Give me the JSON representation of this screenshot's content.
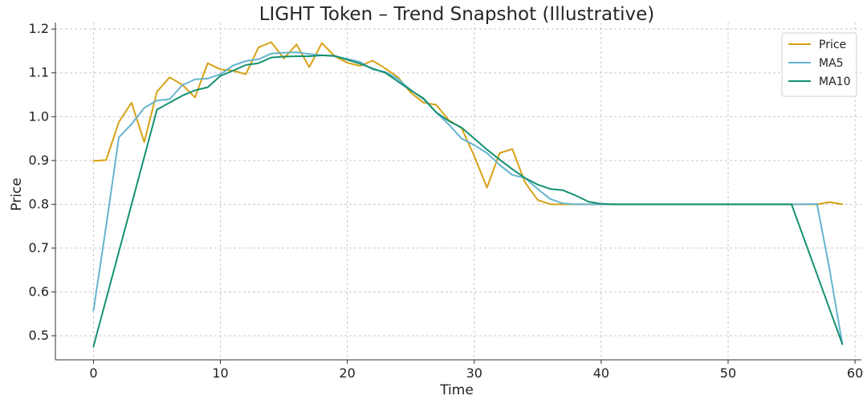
{
  "chart_data": {
    "type": "line",
    "title": "LIGHT Token – Trend Snapshot (Illustrative)",
    "xlabel": "Time",
    "ylabel": "Price",
    "xlim": [
      -3,
      60.5
    ],
    "ylim": [
      0.445,
      1.215
    ],
    "xticks": [
      0,
      10,
      20,
      30,
      40,
      50,
      60
    ],
    "yticks": [
      0.5,
      0.6,
      0.7,
      0.8,
      0.9,
      1.0,
      1.1,
      1.2
    ],
    "ytick_labels": [
      "0.5",
      "0.6",
      "0.7",
      "0.8",
      "0.9",
      "1.0",
      "1.1",
      "1.2"
    ],
    "grid": true,
    "legend_position": "top-right",
    "series": [
      {
        "name": "Price",
        "color": "#d6a215",
        "x": [
          0,
          1,
          2,
          3,
          4,
          5,
          6,
          7,
          8,
          9,
          10,
          11,
          12,
          13,
          14,
          15,
          16,
          17,
          18,
          19,
          20,
          21,
          22,
          23,
          24,
          25,
          26,
          27,
          28,
          29,
          30,
          31,
          32,
          33,
          34,
          35,
          36,
          37,
          38,
          39,
          40,
          41,
          42,
          43,
          44,
          45,
          46,
          47,
          48,
          49,
          50,
          51,
          52,
          53,
          54,
          55,
          56,
          57,
          58,
          59
        ],
        "values": [
          0.899,
          0.901,
          0.988,
          1.032,
          0.942,
          1.057,
          1.09,
          1.073,
          1.044,
          1.122,
          1.108,
          1.105,
          1.097,
          1.158,
          1.17,
          1.133,
          1.165,
          1.113,
          1.168,
          1.138,
          1.123,
          1.116,
          1.128,
          1.11,
          1.09,
          1.055,
          1.032,
          1.027,
          0.992,
          0.974,
          0.91,
          0.838,
          0.917,
          0.926,
          0.85,
          0.81,
          0.8,
          0.8,
          0.8,
          0.8,
          0.8,
          0.8,
          0.8,
          0.8,
          0.8,
          0.8,
          0.8,
          0.8,
          0.8,
          0.8,
          0.8,
          0.8,
          0.8,
          0.8,
          0.8,
          0.8,
          0.8,
          0.8,
          0.805,
          0.8
        ]
      },
      {
        "name": "MA5",
        "color": "#65b4cf",
        "x": [
          0,
          1,
          2,
          3,
          4,
          5,
          6,
          7,
          8,
          9,
          10,
          11,
          12,
          13,
          14,
          15,
          16,
          17,
          18,
          19,
          20,
          21,
          22,
          23,
          24,
          25,
          26,
          27,
          28,
          29,
          30,
          31,
          32,
          33,
          34,
          35,
          36,
          37,
          38,
          39,
          40,
          41,
          42,
          43,
          44,
          45,
          46,
          47,
          48,
          49,
          50,
          51,
          52,
          53,
          54,
          55,
          56,
          57,
          58,
          59
        ],
        "values": [
          0.557,
          0.75,
          0.953,
          0.983,
          1.02,
          1.037,
          1.04,
          1.072,
          1.085,
          1.087,
          1.097,
          1.117,
          1.127,
          1.131,
          1.144,
          1.146,
          1.147,
          1.143,
          1.14,
          1.138,
          1.132,
          1.125,
          1.108,
          1.102,
          1.086,
          1.061,
          1.04,
          1.01,
          0.982,
          0.95,
          0.935,
          0.917,
          0.89,
          0.867,
          0.86,
          0.835,
          0.812,
          0.802,
          0.8,
          0.8,
          0.8,
          0.8,
          0.8,
          0.8,
          0.8,
          0.8,
          0.8,
          0.8,
          0.8,
          0.8,
          0.8,
          0.8,
          0.8,
          0.8,
          0.8,
          0.8,
          0.8,
          0.801,
          0.65,
          0.481
        ]
      },
      {
        "name": "MA10",
        "color": "#149172",
        "x": [
          0,
          5,
          6,
          7,
          8,
          9,
          10,
          11,
          12,
          13,
          14,
          15,
          16,
          17,
          18,
          19,
          20,
          21,
          22,
          23,
          24,
          25,
          26,
          27,
          28,
          29,
          30,
          31,
          32,
          33,
          34,
          35,
          36,
          37,
          38,
          39,
          40,
          41,
          42,
          43,
          44,
          45,
          46,
          47,
          48,
          49,
          50,
          51,
          52,
          53,
          54,
          55,
          59
        ],
        "values": [
          0.475,
          1.016,
          1.032,
          1.048,
          1.06,
          1.067,
          1.093,
          1.105,
          1.118,
          1.122,
          1.135,
          1.137,
          1.138,
          1.138,
          1.14,
          1.139,
          1.13,
          1.121,
          1.11,
          1.1,
          1.08,
          1.06,
          1.042,
          1.01,
          0.99,
          0.975,
          0.95,
          0.925,
          0.902,
          0.88,
          0.86,
          0.845,
          0.835,
          0.832,
          0.82,
          0.806,
          0.801,
          0.8,
          0.8,
          0.8,
          0.8,
          0.8,
          0.8,
          0.8,
          0.8,
          0.8,
          0.8,
          0.8,
          0.8,
          0.8,
          0.8,
          0.8,
          0.481
        ]
      }
    ]
  }
}
